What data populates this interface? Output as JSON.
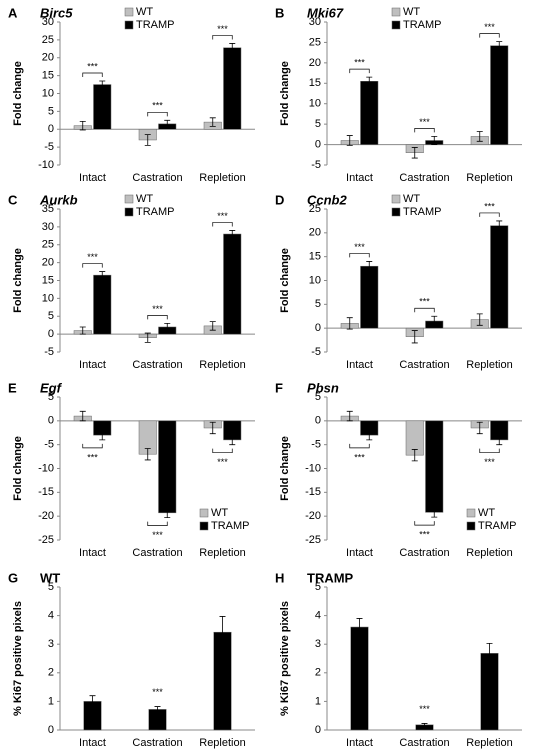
{
  "chart_data": [
    {
      "type": "bar",
      "panel": "A",
      "title": "Birc5",
      "y_label": "Fold change",
      "categories": [
        "Intact",
        "Castration",
        "Repletion"
      ],
      "series": [
        {
          "name": "WT",
          "color": "#bfbfbf",
          "values": [
            1,
            -3,
            2
          ],
          "errors": [
            1.2,
            1.5,
            1.2
          ]
        },
        {
          "name": "TRAMP",
          "color": "#000000",
          "values": [
            12.5,
            1.5,
            22.8
          ],
          "errors": [
            1,
            1,
            1.2
          ]
        }
      ],
      "annotations": [
        "***",
        "***",
        "***"
      ],
      "ylim": [
        -10,
        30
      ],
      "yticks": [
        -10,
        -5,
        0,
        5,
        10,
        15,
        20,
        25,
        30
      ],
      "legend": "top",
      "grid": false
    },
    {
      "type": "bar",
      "panel": "B",
      "title": "Mki67",
      "y_label": "Fold change",
      "categories": [
        "Intact",
        "Castration",
        "Repletion"
      ],
      "series": [
        {
          "name": "WT",
          "color": "#bfbfbf",
          "values": [
            1,
            -2,
            2
          ],
          "errors": [
            1.2,
            1.3,
            1.2
          ]
        },
        {
          "name": "TRAMP",
          "color": "#000000",
          "values": [
            15.5,
            1,
            24.2
          ],
          "errors": [
            1,
            1,
            1
          ]
        }
      ],
      "annotations": [
        "***",
        "***",
        "***"
      ],
      "ylim": [
        -5,
        30
      ],
      "yticks": [
        -5,
        0,
        5,
        10,
        15,
        20,
        25,
        30
      ],
      "legend": "top",
      "grid": false
    },
    {
      "type": "bar",
      "panel": "C",
      "title": "Aurkb",
      "y_label": "Fold change",
      "categories": [
        "Intact",
        "Castration",
        "Repletion"
      ],
      "series": [
        {
          "name": "WT",
          "color": "#bfbfbf",
          "values": [
            1,
            -1,
            2.3
          ],
          "errors": [
            1,
            1.3,
            1.2
          ]
        },
        {
          "name": "TRAMP",
          "color": "#000000",
          "values": [
            16.5,
            2,
            28
          ],
          "errors": [
            1,
            1,
            1
          ]
        }
      ],
      "annotations": [
        "***",
        "***",
        "***"
      ],
      "ylim": [
        -5,
        35
      ],
      "yticks": [
        -5,
        0,
        5,
        10,
        15,
        20,
        25,
        30,
        35
      ],
      "legend": "top",
      "grid": false
    },
    {
      "type": "bar",
      "panel": "D",
      "title": "Ccnb2",
      "y_label": "Fold change",
      "categories": [
        "Intact",
        "Castration",
        "Repletion"
      ],
      "series": [
        {
          "name": "WT",
          "color": "#bfbfbf",
          "values": [
            1,
            -1.8,
            1.8
          ],
          "errors": [
            1.2,
            1.3,
            1.2
          ]
        },
        {
          "name": "TRAMP",
          "color": "#000000",
          "values": [
            13,
            1.5,
            21.5
          ],
          "errors": [
            1,
            1,
            1
          ]
        }
      ],
      "annotations": [
        "***",
        "***",
        "***"
      ],
      "ylim": [
        -5,
        25
      ],
      "yticks": [
        -5,
        0,
        5,
        10,
        15,
        20,
        25
      ],
      "legend": "top",
      "grid": false
    },
    {
      "type": "bar",
      "panel": "E",
      "title": "Egf",
      "y_label": "Fold change",
      "categories": [
        "Intact",
        "Castration",
        "Repletion"
      ],
      "series": [
        {
          "name": "WT",
          "color": "#bfbfbf",
          "values": [
            1,
            -7,
            -1.5
          ],
          "errors": [
            1,
            1.2,
            1.2
          ]
        },
        {
          "name": "TRAMP",
          "color": "#000000",
          "values": [
            -3,
            -19.3,
            -4
          ],
          "errors": [
            1,
            1,
            1
          ]
        }
      ],
      "annotations": [
        "***",
        "***",
        "***"
      ],
      "ylim": [
        -25,
        5
      ],
      "yticks": [
        -25,
        -20,
        -15,
        -10,
        -5,
        0,
        5
      ],
      "legend": "bottom-right",
      "grid": false
    },
    {
      "type": "bar",
      "panel": "F",
      "title": "Pbsn",
      "y_label": "Fold change",
      "categories": [
        "Intact",
        "Castration",
        "Repletion"
      ],
      "series": [
        {
          "name": "WT",
          "color": "#bfbfbf",
          "values": [
            1,
            -7.2,
            -1.5
          ],
          "errors": [
            1,
            1.2,
            1.2
          ]
        },
        {
          "name": "TRAMP",
          "color": "#000000",
          "values": [
            -3,
            -19.2,
            -4
          ],
          "errors": [
            1,
            1,
            1
          ]
        }
      ],
      "annotations": [
        "***",
        "***",
        "***"
      ],
      "ylim": [
        -25,
        5
      ],
      "yticks": [
        -25,
        -20,
        -15,
        -10,
        -5,
        0,
        5
      ],
      "legend": "bottom-right",
      "grid": false
    },
    {
      "type": "bar",
      "panel": "G",
      "title": "WT",
      "y_label": "% Ki67 positive pixels",
      "categories": [
        "Intact",
        "Castration",
        "Repletion"
      ],
      "values": [
        1,
        0.72,
        3.42
      ],
      "errors": [
        0.2,
        0.1,
        0.55
      ],
      "color": "#000000",
      "annotations": [
        null,
        "***",
        null
      ],
      "ylim": [
        0,
        5
      ],
      "yticks": [
        0,
        1,
        2,
        3,
        4,
        5
      ],
      "grid": false
    },
    {
      "type": "bar",
      "panel": "H",
      "title": "TRAMP",
      "y_label": "% Ki67 positive pixels",
      "categories": [
        "Intact",
        "Castration",
        "Repletion"
      ],
      "values": [
        3.6,
        0.18,
        2.68
      ],
      "errors": [
        0.3,
        0.05,
        0.35
      ],
      "color": "#000000",
      "annotations": [
        null,
        "***",
        null
      ],
      "ylim": [
        0,
        5
      ],
      "yticks": [
        0,
        1,
        2,
        3,
        4,
        5
      ],
      "grid": false
    }
  ]
}
